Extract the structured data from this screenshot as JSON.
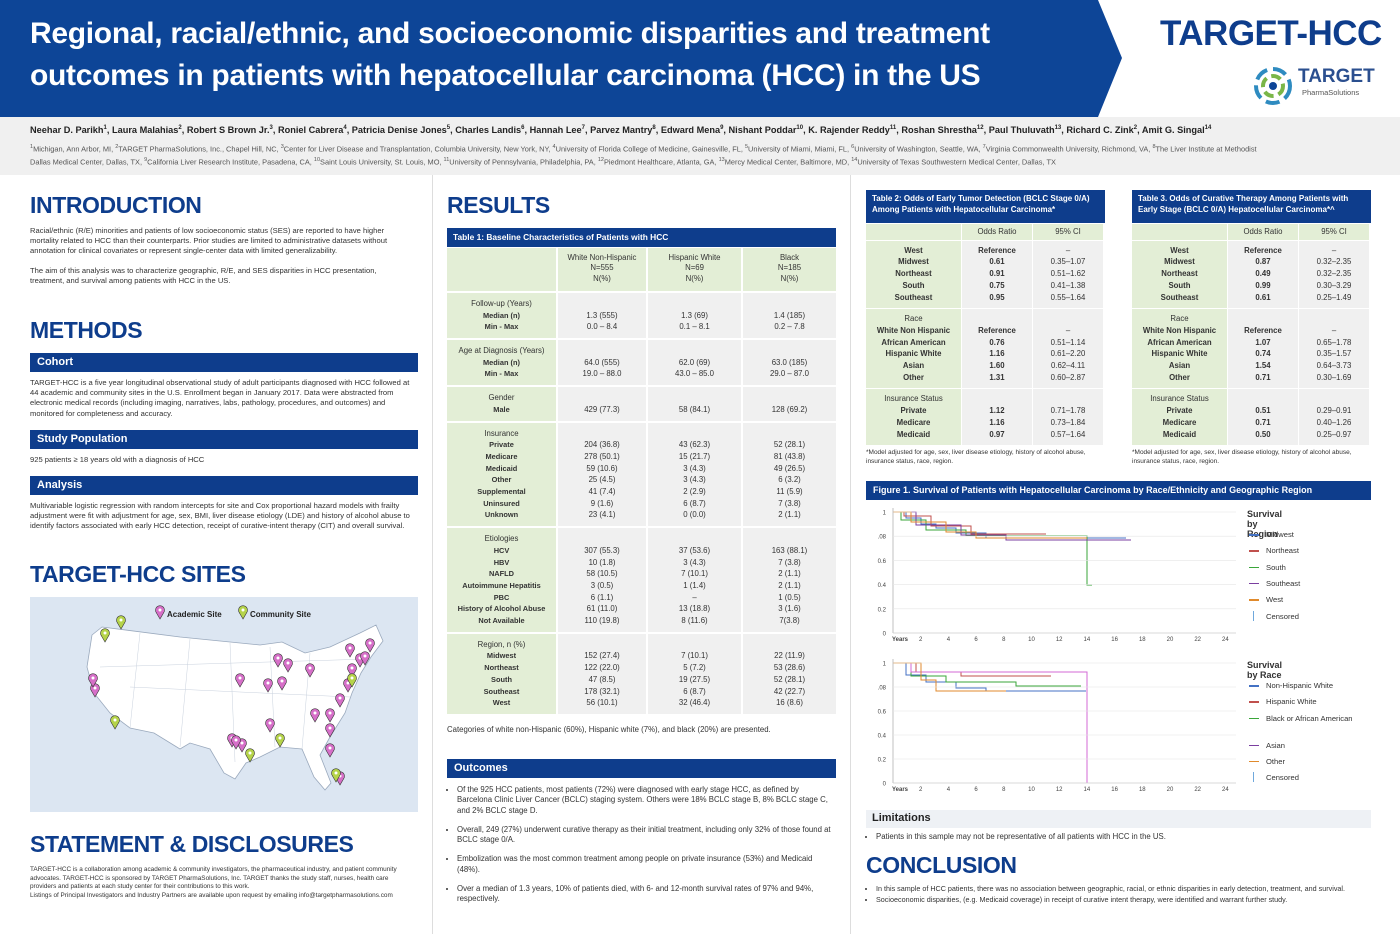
{
  "header": {
    "title_lines": [
      "Regional, racial/ethnic, and socioeconomic disparities and treatment",
      "outcomes in patients with hepatocellular carcinoma (HCC) in the US"
    ],
    "brand": "TARGET-HCC",
    "logo_name": "TARGET",
    "logo_sub": "PharmaSolutions"
  },
  "authors": [
    {
      "name": "Neehar D. Parikh",
      "sup": "1"
    },
    {
      "name": ", Laura Malahias",
      "sup": "2"
    },
    {
      "name": ", Robert S Brown Jr.",
      "sup": "3"
    },
    {
      "name": ", Roniel Cabrera",
      "sup": "4"
    },
    {
      "name": ", Patricia Denise Jones",
      "sup": "5"
    },
    {
      "name": ", Charles Landis",
      "sup": "6"
    },
    {
      "name": ", Hannah Lee",
      "sup": "7"
    },
    {
      "name": ", Parvez Mantry",
      "sup": "8"
    },
    {
      "name": ", Edward Mena",
      "sup": "9"
    },
    {
      "name": ", Nishant Poddar",
      "sup": "10"
    },
    {
      "name": ", K. Rajender Reddy",
      "sup": "11"
    },
    {
      "name": ", Roshan Shrestha",
      "sup": "12"
    },
    {
      "name": ", Paul Thuluvath",
      "sup": "13"
    },
    {
      "name": ", Richard C. Zink",
      "sup": "2"
    },
    {
      "name": ", Amit G. Singal",
      "sup": "14"
    }
  ],
  "affiliations": [
    {
      "sup": "1",
      "text": "Michigan, Ann Arbor, MI, "
    },
    {
      "sup": "2",
      "text": "TARGET PharmaSolutions, Inc., Chapel Hill, NC, "
    },
    {
      "sup": "3",
      "text": "Center for Liver Disease and Transplantation, Columbia University, New York, NY, "
    },
    {
      "sup": "4",
      "text": "University of Florida College of Medicine, Gainesville, FL, "
    },
    {
      "sup": "5",
      "text": "University of Miami, Miami, FL, "
    },
    {
      "sup": "6",
      "text": "University of Washington, Seattle, WA, "
    },
    {
      "sup": "7",
      "text": "Virginia Commonwealth University, Richmond, VA, "
    },
    {
      "sup": "8",
      "text": "The Liver Institute at Methodist Dallas Medical Center, Dallas, TX, "
    },
    {
      "sup": "9",
      "text": "California Liver Research Institute, Pasadena, CA, "
    },
    {
      "sup": "10",
      "text": "Saint Louis University, St. Louis, MO, "
    },
    {
      "sup": "11",
      "text": "University of Pennsylvania, Philadelphia, PA, "
    },
    {
      "sup": "12",
      "text": "Piedmont Healthcare, Atlanta, GA, "
    },
    {
      "sup": "13",
      "text": "Mercy Medical Center, Baltimore, MD, "
    },
    {
      "sup": "14",
      "text": "University of Texas Southwestern Medical Center, Dallas, TX"
    }
  ],
  "introduction": {
    "heading": "INTRODUCTION",
    "paragraphs": [
      "Racial/ethnic (R/E) minorities and patients of low socioeconomic status (SES) are reported to have higher mortality related to HCC than their counterparts. Prior studies are limited to administrative datasets without annotation for clinical covariates or represent single-center data with limited generalizability.",
      "The aim of this analysis was to characterize geographic, R/E, and SES disparities in HCC presentation, treatment, and survival among patients with HCC in the US."
    ]
  },
  "methods": {
    "heading": "METHODS",
    "sections": [
      {
        "title": "Cohort",
        "text": "TARGET-HCC is a five year longitudinal observational study of adult participants diagnosed with HCC followed at 44 academic and community sites in the U.S. Enrollment began in January 2017. Data were abstracted from electronic medical records (including imaging, narratives, labs, pathology, procedures, and outcomes) and monitored for completeness and accuracy."
      },
      {
        "title": "Study Population",
        "text": "925 patients ≥ 18 years old with a diagnosis of HCC"
      },
      {
        "title": "Analysis",
        "text": "Multivariable logistic regression with random intercepts for site and Cox proportional hazard models with frailty adjustment were fit with adjustment for age, sex, BMI, liver disease etiology (LDE) and history of alcohol abuse to identify factors associated with early HCC detection, receipt of curative-intent therapy (CIT) and overall survival."
      }
    ]
  },
  "sites": {
    "heading": "TARGET-HCC SITES",
    "legend": [
      "Academic Site",
      "Community Site"
    ]
  },
  "statement": {
    "heading": "STATEMENT & DISCLOSURES",
    "paragraphs": [
      "TARGET-HCC is a collaboration among academic & community investigators, the  pharmaceutical industry, and patient community advocates. TARGET-HCC is  sponsored by TARGET PharmaSolutions, Inc. TARGET thanks the study staff, nurses, health  care providers and patients at each study center for their contributions to this work.",
      "Listings of Principal Investigators and Industry Partners are available upon request by  emailing info@targetpharmasolutions.com"
    ]
  },
  "results": {
    "heading": "RESULTS",
    "table1": {
      "title": "Table 1:  Baseline Characteristics of Patients with HCC",
      "columns": [
        [
          "White Non-Hispanic",
          "N=555",
          "N(%)"
        ],
        [
          "Hispanic White",
          "N=69",
          "N(%)"
        ],
        [
          "Black",
          "N=185",
          "N(%)"
        ]
      ],
      "groups": [
        {
          "label": "Follow-up (Years)",
          "rows": [
            [
              "Median (n)",
              "1.3 (555)",
              "1.3 (69)",
              "1.4 (185)"
            ],
            [
              "Min - Max",
              "0.0 – 8.4",
              "0.1 – 8.1",
              "0.2 – 7.8"
            ]
          ]
        },
        {
          "label": "Age at Diagnosis (Years)",
          "rows": [
            [
              "Median (n)",
              "64.0 (555)",
              "62.0 (69)",
              "63.0 (185)"
            ],
            [
              "Min - Max",
              "19.0 – 88.0",
              "43.0 – 85.0",
              "29.0 – 87.0"
            ]
          ]
        },
        {
          "label": "Gender",
          "rows": [
            [
              "Male",
              "429 (77.3)",
              "58 (84.1)",
              "128 (69.2)"
            ]
          ]
        },
        {
          "label": "Insurance",
          "rows": [
            [
              "Private",
              "204 (36.8)",
              "43 (62.3)",
              "52 (28.1)"
            ],
            [
              "Medicare",
              "278 (50.1)",
              "15 (21.7)",
              "81 (43.8)"
            ],
            [
              "Medicaid",
              "59 (10.6)",
              "3 (4.3)",
              "49 (26.5)"
            ],
            [
              "Other",
              "25 (4.5)",
              "3 (4.3)",
              "6 (3.2)"
            ],
            [
              "Supplemental",
              "41 (7.4)",
              "2 (2.9)",
              "11 (5.9)"
            ],
            [
              "Uninsured",
              "9 (1.6)",
              "6 (8.7)",
              "7 (3.8)"
            ],
            [
              "Unknown",
              "23 (4.1)",
              "0 (0.0)",
              "2 (1.1)"
            ]
          ]
        },
        {
          "label": "Etiologies",
          "rows": [
            [
              "HCV",
              "307 (55.3)",
              "37 (53.6)",
              "163 (88.1)"
            ],
            [
              "HBV",
              "10 (1.8)",
              "3 (4.3)",
              "7 (3.8)"
            ],
            [
              "NAFLD",
              "58 (10.5)",
              "7 (10.1)",
              "2 (1.1)"
            ],
            [
              "Autoimmune Hepatitis",
              "3 (0.5)",
              "1 (1.4)",
              "2 (1.1)"
            ],
            [
              "PBC",
              "6 (1.1)",
              "–",
              "1 (0.5)"
            ],
            [
              "History of Alcohol Abuse",
              "61 (11.0)",
              "13 (18.8)",
              "3 (1.6)"
            ],
            [
              "Not Available",
              "110 (19.8)",
              "8 (11.6)",
              "7(3.8)"
            ]
          ]
        },
        {
          "label": "Region, n (%)",
          "rows": [
            [
              "Midwest",
              "152 (27.4)",
              "7 (10.1)",
              "22 (11.9)"
            ],
            [
              "Northeast",
              "122 (22.0)",
              "5 (7.2)",
              "53 (28.6)"
            ],
            [
              "South",
              "47 (8.5)",
              "19 (27.5)",
              "52 (28.1)"
            ],
            [
              "Southeast",
              "178 (32.1)",
              "6 (8.7)",
              "42 (22.7)"
            ],
            [
              "West",
              "56 (10.1)",
              "32 (46.4)",
              "16 (8.6)"
            ]
          ]
        }
      ]
    },
    "caption": "Categories of white non-Hispanic (60%), Hispanic white (7%), and black (20%) are presented."
  },
  "outcomes": {
    "heading": "Outcomes",
    "bullets": [
      "Of the 925 HCC patients, most patients (72%) were diagnosed with early stage HCC, as defined by Barcelona Clinic Liver Cancer (BCLC) staging system. Others were 18% BCLC stage B, 8% BCLC stage C, and 2% BCLC stage D.",
      "Overall, 249 (27%) underwent curative therapy as their initial treatment, including  only 32% of those found at BCLC stage 0/A.",
      "Embolization was the most common treatment among people on private insurance (53%) and Medicaid (48%).",
      "Over a median of 1.3 years, 10% of patients died, with 6- and 12-month survival rates of 97% and 94%, respectively."
    ]
  },
  "table2": {
    "title": "Table 2:  Odds of Early Tumor Detection (BCLC Stage 0/A) Among Patients with Hepatocellular Carcinoma*",
    "columns": [
      "Odds Ratio",
      "95% CI"
    ],
    "groups": [
      {
        "rows": [
          [
            "West",
            "Reference",
            "–"
          ],
          [
            "Midwest",
            "0.61",
            "0.35–1.07"
          ],
          [
            "Northeast",
            "0.91",
            "0.51–1.62"
          ],
          [
            "South",
            "0.75",
            "0.41–1.38"
          ],
          [
            "Southeast",
            "0.95",
            "0.55–1.64"
          ]
        ]
      },
      {
        "label": "Race",
        "rows": [
          [
            "White Non Hispanic",
            "Reference",
            "–"
          ],
          [
            "African American",
            "0.76",
            "0.51–1.14"
          ],
          [
            "Hispanic White",
            "1.16",
            "0.61–2.20"
          ],
          [
            "Asian",
            "1.60",
            "0.62–4.11"
          ],
          [
            "Other",
            "1.31",
            "0.60–2.87"
          ]
        ]
      },
      {
        "label": "Insurance Status",
        "rows": [
          [
            "Private",
            "1.12",
            "0.71–1.78"
          ],
          [
            "Medicare",
            "1.16",
            "0.73–1.84"
          ],
          [
            "Medicaid",
            "0.97",
            "0.57–1.64"
          ]
        ]
      }
    ],
    "note": "*Model adjusted for age, sex, liver disease etiology, history of alcohol abuse, insurance status, race, region."
  },
  "table3": {
    "title": "Table 3. Odds of Curative Therapy Among Patients with Early Stage (BCLC 0/A) Hepatocellular Carcinoma*^",
    "columns": [
      "Odds Ratio",
      "95% CI"
    ],
    "groups": [
      {
        "rows": [
          [
            "West",
            "Reference",
            "–"
          ],
          [
            "Midwest",
            "0.87",
            "0.32–2.35"
          ],
          [
            "Northeast",
            "0.49",
            "0.32–2.35"
          ],
          [
            "South",
            "0.99",
            "0.30–3.29"
          ],
          [
            "Southeast",
            "0.61",
            "0.25–1.49"
          ]
        ]
      },
      {
        "label": "Race",
        "rows": [
          [
            "White Non Hispanic",
            "Reference",
            "–"
          ],
          [
            "African American",
            "1.07",
            "0.65–1.78"
          ],
          [
            "Hispanic White",
            "0.74",
            "0.35–1.57"
          ],
          [
            "Asian",
            "1.54",
            "0.64–3.73"
          ],
          [
            "Other",
            "0.71",
            "0.30–1.69"
          ]
        ]
      },
      {
        "label": "Insurance Status",
        "rows": [
          [
            "Private",
            "0.51",
            "0.29–0.91"
          ],
          [
            "Medicare",
            "0.71",
            "0.40–1.26"
          ],
          [
            "Medicaid",
            "0.50",
            "0.25–0.97"
          ]
        ]
      }
    ],
    "note": "*Model adjusted for age, sex, liver disease etiology, history of alcohol abuse, insurance status, race, region."
  },
  "figure1": {
    "title": "Figure 1. Survival of Patients with Hepatocellular Carcinoma by Race/Ethnicity and Geographic Region",
    "panels": [
      {
        "legend_title": "Survival by Region",
        "legend": [
          {
            "name": "Midwest",
            "color": "#4472c4"
          },
          {
            "name": "Northeast",
            "color": "#c0504d"
          },
          {
            "name": "South",
            "color": "#3aa63a"
          },
          {
            "name": "Southeast",
            "color": "#7a3fa0"
          },
          {
            "name": "West",
            "color": "#e08a2c"
          },
          {
            "name": "Censored",
            "color": "#6fa8dc"
          }
        ],
        "y_labels": [
          "1",
          ".08",
          "0.6",
          "0.4",
          "0.2",
          "0"
        ],
        "x_labels": [
          "Years",
          "2",
          "4",
          "6",
          "8",
          "10",
          "12",
          "14",
          "16",
          "18",
          "20",
          "22",
          "24"
        ]
      },
      {
        "legend_title": "Survival by Race",
        "legend": [
          {
            "name": "Non-Hispanic White",
            "color": "#4472c4"
          },
          {
            "name": "Hispanic White",
            "color": "#c0504d"
          },
          {
            "name": "Black or African American",
            "color": "#3aa63a"
          },
          {
            "name": "Asian",
            "color": "#7a3fa0"
          },
          {
            "name": "Other",
            "color": "#e08a2c"
          },
          {
            "name": "Censored",
            "color": "#6fa8dc"
          }
        ],
        "y_labels": [
          "1",
          ".08",
          "0.6",
          "0.4",
          "0.2",
          "0"
        ],
        "x_labels": [
          "Years",
          "2",
          "4",
          "6",
          "8",
          "10",
          "12",
          "14",
          "16",
          "18",
          "20",
          "22",
          "24"
        ]
      }
    ]
  },
  "limitations": {
    "heading": "Limitations",
    "bullets": [
      "Patients in this sample may not be representative of all patients with HCC in the US."
    ]
  },
  "conclusion": {
    "heading": "CONCLUSION",
    "bullets": [
      "In this sample of HCC patients, there was no association between  geographic, racial, or ethnic disparities in early detection, treatment, and survival.",
      "Socioeconomic disparities, (e.g. Medicaid coverage) in receipt of curative intent therapy, were identified and warrant further study."
    ]
  }
}
